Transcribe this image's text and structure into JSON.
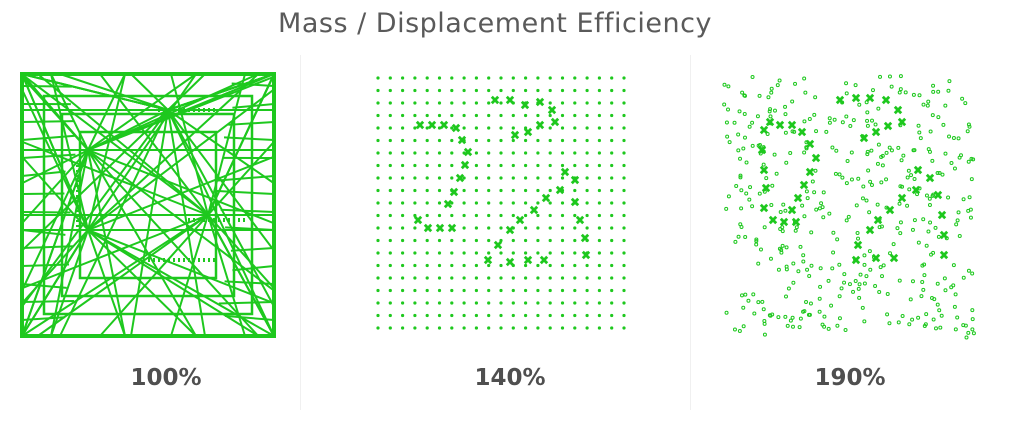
{
  "header": {
    "title": "Mass / Displacement Efficiency"
  },
  "colors": {
    "pattern_green": "#1ec81e",
    "text": "#5a5a5a",
    "caption": "#4f4f4f"
  },
  "panels": [
    {
      "label": "100%",
      "style": "mesh"
    },
    {
      "label": "140%",
      "style": "grid-dots"
    },
    {
      "label": "190%",
      "style": "scattered-dots"
    }
  ]
}
